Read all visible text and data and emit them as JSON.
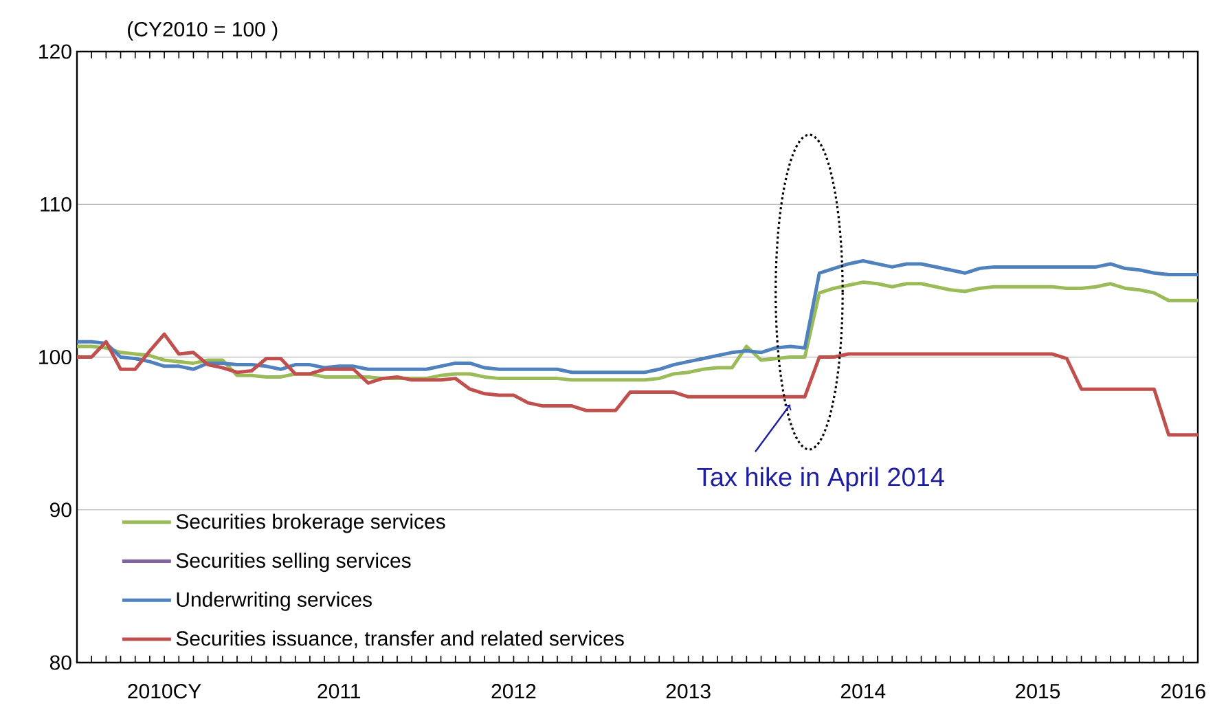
{
  "chart_data": {
    "type": "line",
    "ylabel": "(CY2010 = 100 )",
    "categories": [
      null,
      null,
      null,
      null,
      null,
      null,
      "2010CY",
      null,
      null,
      null,
      null,
      null,
      null,
      null,
      null,
      null,
      null,
      null,
      "2011",
      null,
      null,
      null,
      null,
      null,
      null,
      null,
      null,
      null,
      null,
      null,
      "2012",
      null,
      null,
      null,
      null,
      null,
      null,
      null,
      null,
      null,
      null,
      null,
      "2013",
      null,
      null,
      null,
      null,
      null,
      null,
      null,
      null,
      null,
      null,
      null,
      "2014",
      null,
      null,
      null,
      null,
      null,
      null,
      null,
      null,
      null,
      null,
      null,
      "2015",
      null,
      null,
      null,
      null,
      null,
      null,
      null,
      null,
      null,
      "2016",
      null
    ],
    "ylim": [
      80,
      120
    ],
    "yticks": [
      80,
      90,
      100,
      110,
      120
    ],
    "grid": "y",
    "legend": "bottom left",
    "annotations": [
      "Tax hike in April 2014"
    ],
    "series": [
      {
        "name": "Securities brokerage services",
        "color": "#9bbb59",
        "values": [
          100.7,
          100.7,
          100.6,
          100.3,
          100.2,
          100.1,
          99.8,
          99.7,
          99.6,
          99.8,
          99.8,
          98.8,
          98.8,
          98.7,
          98.7,
          98.9,
          98.9,
          98.7,
          98.7,
          98.7,
          98.7,
          98.6,
          98.6,
          98.6,
          98.6,
          98.8,
          98.9,
          98.9,
          98.7,
          98.6,
          98.6,
          98.6,
          98.6,
          98.6,
          98.5,
          98.5,
          98.5,
          98.5,
          98.5,
          98.5,
          98.6,
          98.9,
          99.0,
          99.2,
          99.3,
          99.3,
          100.7,
          99.8,
          99.9,
          100.0,
          100.0,
          104.2,
          104.5,
          104.7,
          104.9,
          104.8,
          104.6,
          104.8,
          104.8,
          104.6,
          104.4,
          104.3,
          104.5,
          104.6,
          104.6,
          104.6,
          104.6,
          104.6,
          104.5,
          104.5,
          104.6,
          104.8,
          104.5,
          104.4,
          104.2,
          103.7,
          103.7,
          103.7
        ]
      },
      {
        "name": "Securities selling services",
        "color": "#8064a2",
        "values": [
          null,
          null,
          null,
          null,
          null,
          null,
          null,
          null,
          null,
          null,
          null,
          null,
          null,
          null,
          null,
          null,
          null,
          null,
          null,
          null,
          null,
          null,
          null,
          null,
          null,
          null,
          null,
          null,
          null,
          null,
          null,
          null,
          null,
          null,
          null,
          null,
          null,
          null,
          null,
          null,
          null,
          null,
          null,
          null,
          null,
          null,
          null,
          null,
          null,
          null,
          null,
          null,
          null,
          null,
          null,
          null,
          null,
          null,
          null,
          null,
          null,
          null,
          null,
          null,
          null,
          null,
          null,
          null,
          null,
          null,
          null,
          null,
          null,
          null,
          null,
          null,
          null,
          null
        ]
      },
      {
        "name": "Underwriting services",
        "color": "#4f81bd",
        "values": [
          101.0,
          101.0,
          100.9,
          100.0,
          99.9,
          99.7,
          99.4,
          99.4,
          99.2,
          99.6,
          99.6,
          99.5,
          99.5,
          99.4,
          99.2,
          99.5,
          99.5,
          99.3,
          99.4,
          99.4,
          99.2,
          99.2,
          99.2,
          99.2,
          99.2,
          99.4,
          99.6,
          99.6,
          99.3,
          99.2,
          99.2,
          99.2,
          99.2,
          99.2,
          99.0,
          99.0,
          99.0,
          99.0,
          99.0,
          99.0,
          99.2,
          99.5,
          99.7,
          99.9,
          100.1,
          100.3,
          100.4,
          100.3,
          100.6,
          100.7,
          100.6,
          105.5,
          105.8,
          106.1,
          106.3,
          106.1,
          105.9,
          106.1,
          106.1,
          105.9,
          105.7,
          105.5,
          105.8,
          105.9,
          105.9,
          105.9,
          105.9,
          105.9,
          105.9,
          105.9,
          105.9,
          106.1,
          105.8,
          105.7,
          105.5,
          105.4,
          105.4,
          105.4
        ]
      },
      {
        "name": "Securities issuance, transfer and related services",
        "color": "#c0504d",
        "values": [
          100.0,
          100.0,
          101.0,
          99.2,
          99.2,
          100.4,
          101.5,
          100.2,
          100.3,
          99.5,
          99.3,
          99.0,
          99.1,
          99.9,
          99.9,
          98.9,
          98.9,
          99.2,
          99.2,
          99.2,
          98.3,
          98.6,
          98.7,
          98.5,
          98.5,
          98.5,
          98.6,
          97.9,
          97.6,
          97.5,
          97.5,
          97.0,
          96.8,
          96.8,
          96.8,
          96.5,
          96.5,
          96.5,
          97.7,
          97.7,
          97.7,
          97.7,
          97.4,
          97.4,
          97.4,
          97.4,
          97.4,
          97.4,
          97.4,
          97.4,
          97.4,
          100.0,
          100.0,
          100.2,
          100.2,
          100.2,
          100.2,
          100.2,
          100.2,
          100.2,
          100.2,
          100.2,
          100.2,
          100.2,
          100.2,
          100.2,
          100.2,
          100.2,
          99.9,
          97.9,
          97.9,
          97.9,
          97.9,
          97.9,
          97.9,
          94.9,
          94.9,
          94.9
        ]
      }
    ]
  }
}
